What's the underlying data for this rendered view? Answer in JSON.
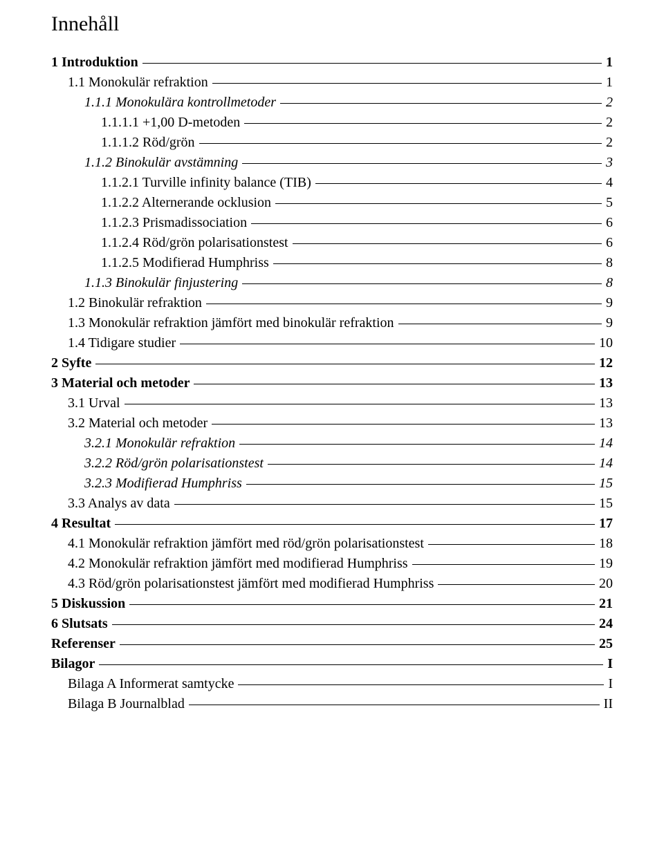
{
  "title": "Innehåll",
  "toc": [
    {
      "level": 0,
      "label": "1 Introduktion",
      "page": "1"
    },
    {
      "level": 1,
      "label": "1.1 Monokulär refraktion",
      "page": "1"
    },
    {
      "level": 2,
      "label": "1.1.1 Monokulära kontrollmetoder",
      "page": "2"
    },
    {
      "level": 3,
      "label": "1.1.1.1 +1,00 D-metoden",
      "page": "2"
    },
    {
      "level": 3,
      "label": "1.1.1.2 Röd/grön",
      "page": "2"
    },
    {
      "level": 2,
      "label": "1.1.2 Binokulär avstämning",
      "page": "3"
    },
    {
      "level": 3,
      "label": "1.1.2.1 Turville infinity balance (TIB)",
      "page": "4"
    },
    {
      "level": 3,
      "label": "1.1.2.2 Alternerande ocklusion",
      "page": "5"
    },
    {
      "level": 3,
      "label": "1.1.2.3 Prismadissociation",
      "page": "6"
    },
    {
      "level": 3,
      "label": "1.1.2.4 Röd/grön polarisationstest",
      "page": "6"
    },
    {
      "level": 3,
      "label": "1.1.2.5 Modifierad Humphriss",
      "page": "8"
    },
    {
      "level": 2,
      "label": "1.1.3 Binokulär finjustering",
      "page": "8"
    },
    {
      "level": 1,
      "label": "1.2 Binokulär refraktion",
      "page": "9"
    },
    {
      "level": 1,
      "label": "1.3 Monokulär refraktion jämfört med binokulär refraktion",
      "page": "9"
    },
    {
      "level": 1,
      "label": "1.4 Tidigare studier",
      "page": "10"
    },
    {
      "level": 0,
      "label": "2 Syfte",
      "page": "12"
    },
    {
      "level": 0,
      "label": "3 Material och metoder",
      "page": "13"
    },
    {
      "level": 1,
      "label": "3.1 Urval",
      "page": "13"
    },
    {
      "level": 1,
      "label": "3.2 Material och metoder",
      "page": "13"
    },
    {
      "level": 2,
      "label": "3.2.1 Monokulär refraktion",
      "page": "14"
    },
    {
      "level": 2,
      "label": "3.2.2 Röd/grön polarisationstest",
      "page": "14"
    },
    {
      "level": 2,
      "label": "3.2.3 Modifierad Humphriss",
      "page": "15"
    },
    {
      "level": 1,
      "label": "3.3 Analys av data",
      "page": "15"
    },
    {
      "level": 0,
      "label": "4 Resultat",
      "page": "17"
    },
    {
      "level": 1,
      "label": "4.1 Monokulär refraktion jämfört med röd/grön polarisationstest",
      "page": "18"
    },
    {
      "level": 1,
      "label": "4.2 Monokulär refraktion jämfört med modifierad Humphriss",
      "page": "19"
    },
    {
      "level": 1,
      "label": "4.3 Röd/grön polarisationstest jämfört med modifierad Humphriss",
      "page": "20"
    },
    {
      "level": 0,
      "label": "5 Diskussion",
      "page": "21"
    },
    {
      "level": 0,
      "label": "6 Slutsats",
      "page": "24"
    },
    {
      "level": 0,
      "label": "Referenser",
      "page": "25"
    },
    {
      "level": 0,
      "label": "Bilagor",
      "page": "I"
    },
    {
      "level": 1,
      "label": "Bilaga A Informerat samtycke",
      "page": "I"
    },
    {
      "level": 1,
      "label": "Bilaga B Journalblad",
      "page": "II"
    }
  ]
}
